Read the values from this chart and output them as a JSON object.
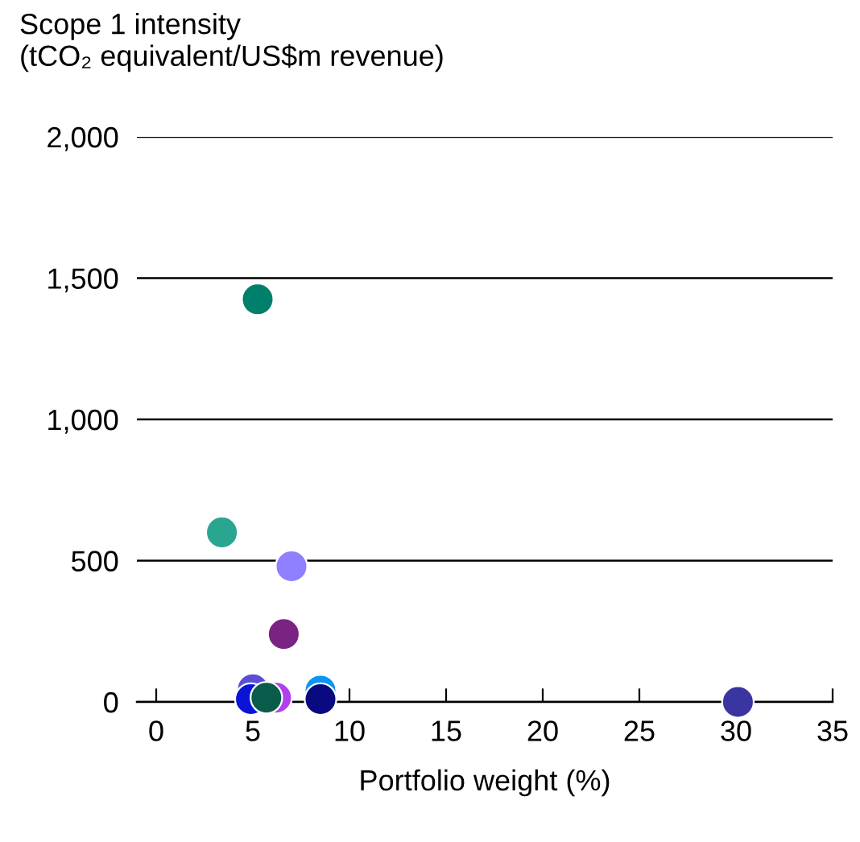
{
  "chart_data": {
    "type": "scatter",
    "ylabel": "Scope 1 intensity\n(tCO₂ equivalent/US$m revenue)",
    "xlabel": "Portfolio weight (%)",
    "x": [
      5.25,
      3.4,
      7.0,
      6.6,
      5.0,
      4.9,
      6.2,
      5.7,
      8.5,
      8.5,
      30.1
    ],
    "values": [
      1425,
      600,
      480,
      240,
      45,
      10,
      15,
      15,
      40,
      10,
      0
    ],
    "colors": [
      "#00806a",
      "#2aa690",
      "#8f80ff",
      "#7b2382",
      "#5a4ed6",
      "#0a14d6",
      "#b040ee",
      "#0a5c4a",
      "#0a96f5",
      "#0a0a80",
      "#3a35a0"
    ],
    "xlim": [
      -1,
      35
    ],
    "xticks": [
      0,
      5,
      10,
      15,
      20,
      25,
      30,
      35
    ],
    "ylim": [
      0,
      2000
    ],
    "yticks": [
      {
        "value": 0,
        "label": "0"
      },
      {
        "value": 500,
        "label": "500"
      },
      {
        "value": 1000,
        "label": "1,000"
      },
      {
        "value": 1500,
        "label": "1,500"
      },
      {
        "value": 2000,
        "label": "2,000"
      }
    ],
    "grid": "y"
  }
}
